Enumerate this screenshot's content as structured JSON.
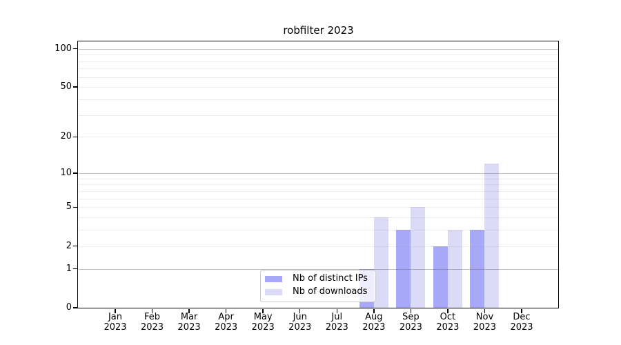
{
  "chart_data": {
    "type": "bar",
    "title": "robfilter 2023",
    "categories": [
      "Jan 2023",
      "Feb 2023",
      "Mar 2023",
      "Apr 2023",
      "May 2023",
      "Jun 2023",
      "Jul 2023",
      "Aug 2023",
      "Sep 2023",
      "Oct 2023",
      "Nov 2023",
      "Dec 2023"
    ],
    "series": [
      {
        "name": "Nb of distinct IPs",
        "color": "#a8a8f8",
        "values": [
          0,
          0,
          0,
          0,
          0,
          0,
          0,
          1,
          3,
          2,
          3,
          0
        ]
      },
      {
        "name": "Nb of downloads",
        "color": "#dbdbf8",
        "values": [
          0,
          0,
          0,
          0,
          0,
          0,
          0,
          4,
          5,
          3,
          12,
          0
        ]
      }
    ],
    "xlabel": "",
    "ylabel": "",
    "yscale": "log1p",
    "ylim": [
      0,
      114
    ],
    "y_tick_values": [
      0,
      1,
      2,
      5,
      10,
      20,
      50,
      100
    ],
    "y_major_gridlines": [
      1,
      10,
      100
    ],
    "y_minor_gridlines": [
      2,
      3,
      4,
      5,
      6,
      7,
      8,
      9,
      20,
      30,
      40,
      50,
      60,
      70,
      80,
      90
    ],
    "grid": "horizontal, drawn on top of bars",
    "legend": {
      "position": "inside lower-center",
      "labels": [
        "Nb of distinct IPs",
        "Nb of downloads"
      ]
    }
  },
  "colors": {
    "major_grid": "rgba(96,96,96,0.40)",
    "minor_grid": "rgba(150,150,150,0.18)",
    "spine": "#000000",
    "text": "#000000",
    "legend_border": "#cccccc",
    "legend_bg": "rgba(255,255,255,0.8)"
  }
}
